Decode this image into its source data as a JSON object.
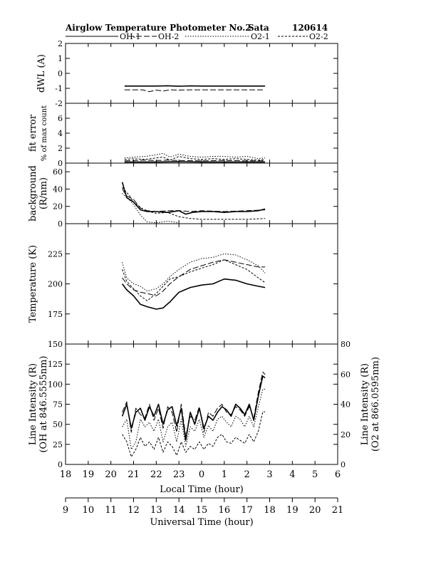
{
  "header": {
    "title": "Airglow Temperature Photometer No.2",
    "site": "Sata",
    "date": "120614"
  },
  "legend": [
    {
      "label": "OH-1",
      "color": "#000000",
      "dash": "solid",
      "width": 1.0
    },
    {
      "label": "OH-2",
      "color": "#000000",
      "dash": "longdash",
      "width": 1.0
    },
    {
      "label": "O2-1",
      "color": "#000000",
      "dash": "dot",
      "width": 1.0
    },
    {
      "label": "O2-2",
      "color": "#000000",
      "dash": "shortdash",
      "width": 1.0
    }
  ],
  "chart_data": [
    {
      "type": "line",
      "name": "dwl",
      "ylabel": "dWL (A)",
      "ylim": [
        -2,
        2
      ],
      "yticks": [
        2,
        1,
        0,
        -1,
        -2
      ],
      "xlim": [
        18,
        30
      ],
      "series": [
        {
          "name": "OH-1",
          "x": [
            20.6,
            21.5,
            22.0,
            22.5,
            23.0,
            23.5,
            24.0,
            25.0,
            26.0,
            26.8
          ],
          "y": [
            -0.85,
            -0.85,
            -0.85,
            -0.83,
            -0.86,
            -0.84,
            -0.85,
            -0.85,
            -0.85,
            -0.85
          ]
        },
        {
          "name": "OH-2",
          "x": [
            20.6,
            21.4,
            21.7,
            22.0,
            22.3,
            22.6,
            23.0,
            23.5,
            24.0,
            25.0,
            26.8
          ],
          "y": [
            -1.1,
            -1.1,
            -1.22,
            -1.12,
            -1.18,
            -1.1,
            -1.12,
            -1.1,
            -1.1,
            -1.1,
            -1.1
          ]
        }
      ]
    },
    {
      "type": "line",
      "name": "fit-error",
      "ylabel": "fit error",
      "ylabel2": "% of max count",
      "ylim": [
        0,
        8
      ],
      "yticks": [
        6,
        4,
        2,
        0
      ],
      "xlim": [
        18,
        30
      ],
      "series": [
        {
          "name": "OH-1",
          "x": [
            20.6,
            22.0,
            23.0,
            24.0,
            25.0,
            26.8
          ],
          "y": [
            0.15,
            0.15,
            0.18,
            0.15,
            0.15,
            0.15
          ]
        },
        {
          "name": "OH-2",
          "x": [
            20.6,
            21.5,
            22.0,
            22.5,
            23.0,
            24.0,
            25.0,
            26.0,
            26.8
          ],
          "y": [
            0.3,
            0.4,
            0.35,
            0.4,
            0.35,
            0.3,
            0.35,
            0.3,
            0.3
          ]
        },
        {
          "name": "O2-1",
          "x": [
            20.6,
            21.0,
            21.5,
            22.0,
            22.3,
            22.6,
            23.0,
            23.5,
            24.0,
            24.5,
            25.0,
            25.5,
            26.0,
            26.5,
            26.8
          ],
          "y": [
            0.7,
            0.8,
            0.9,
            1.1,
            1.3,
            0.8,
            1.2,
            0.9,
            0.8,
            0.9,
            0.9,
            0.8,
            0.9,
            0.6,
            0.7
          ]
        },
        {
          "name": "O2-2",
          "x": [
            20.6,
            21.0,
            21.5,
            22.0,
            22.3,
            22.6,
            23.0,
            23.5,
            24.0,
            24.5,
            25.0,
            25.5,
            26.0,
            26.5,
            26.8
          ],
          "y": [
            0.5,
            0.6,
            0.5,
            0.7,
            0.8,
            0.4,
            0.9,
            0.6,
            0.5,
            0.6,
            0.5,
            0.6,
            0.5,
            0.4,
            0.5
          ]
        }
      ]
    },
    {
      "type": "line",
      "name": "background",
      "ylabel": "background",
      "ylabel2": "(R/nm)",
      "ylim": [
        0,
        70
      ],
      "yticks": [
        60,
        40,
        20,
        0
      ],
      "xlim": [
        18,
        30
      ],
      "series": [
        {
          "name": "OH-1",
          "x": [
            20.5,
            20.7,
            21.0,
            21.3,
            21.6,
            22.0,
            22.5,
            23.0,
            23.3,
            23.6,
            24.0,
            24.5,
            25.0,
            25.5,
            26.0,
            26.5,
            26.8
          ],
          "y": [
            48,
            30,
            25,
            16,
            14,
            14,
            13,
            15,
            11,
            13,
            14,
            14,
            13,
            14,
            14,
            15,
            17
          ]
        },
        {
          "name": "OH-2",
          "x": [
            20.5,
            20.7,
            21.0,
            21.3,
            21.6,
            22.0,
            22.5,
            23.0,
            23.5,
            24.0,
            25.0,
            26.0,
            26.8
          ],
          "y": [
            40,
            32,
            28,
            18,
            15,
            14,
            15,
            15,
            14,
            15,
            14,
            15,
            16
          ]
        },
        {
          "name": "O2-1",
          "x": [
            20.5,
            20.8,
            21.0,
            21.3,
            21.6,
            22.0,
            22.5,
            23.0
          ],
          "y": [
            35,
            28,
            22,
            10,
            2,
            1,
            3,
            1
          ]
        },
        {
          "name": "O2-2",
          "x": [
            20.5,
            20.8,
            21.0,
            21.5,
            22.0,
            22.5,
            23.0,
            23.5,
            24.0,
            25.0,
            26.0,
            26.8
          ],
          "y": [
            42,
            33,
            25,
            15,
            12,
            13,
            8,
            6,
            5,
            5,
            5,
            6
          ]
        }
      ]
    },
    {
      "type": "line",
      "name": "temperature",
      "ylabel": "Temperature (K)",
      "ylim": [
        150,
        250
      ],
      "yticks": [
        225,
        200,
        175
      ],
      "xlim": [
        18,
        30
      ],
      "series": [
        {
          "name": "OH-1",
          "x": [
            20.5,
            20.7,
            21.0,
            21.3,
            21.6,
            22.0,
            22.3,
            22.6,
            23.0,
            23.5,
            24.0,
            24.5,
            25.0,
            25.5,
            26.0,
            26.5,
            26.8
          ],
          "y": [
            200,
            195,
            190,
            183,
            181,
            179,
            180,
            185,
            193,
            197,
            199,
            200,
            204,
            203,
            200,
            198,
            197
          ]
        },
        {
          "name": "OH-2",
          "x": [
            20.5,
            20.7,
            21.0,
            21.3,
            21.6,
            22.0,
            22.3,
            22.6,
            23.0,
            23.5,
            24.0,
            24.5,
            25.0,
            25.5,
            26.0,
            26.5,
            26.8
          ],
          "y": [
            205,
            200,
            195,
            193,
            192,
            190,
            194,
            200,
            206,
            212,
            215,
            218,
            220,
            218,
            216,
            214,
            214
          ]
        },
        {
          "name": "O2-1",
          "x": [
            20.5,
            20.7,
            21.0,
            21.3,
            21.6,
            22.0,
            22.3,
            22.6,
            23.0,
            23.5,
            24.0,
            24.5,
            25.0,
            25.5,
            26.0,
            26.5,
            26.8
          ],
          "y": [
            218,
            205,
            200,
            198,
            194,
            196,
            200,
            206,
            212,
            218,
            221,
            222,
            225,
            224,
            220,
            215,
            209
          ]
        },
        {
          "name": "O2-2",
          "x": [
            20.5,
            20.7,
            21.0,
            21.3,
            21.6,
            22.0,
            22.3,
            22.6,
            23.0,
            23.5,
            24.0,
            24.5,
            25.0,
            25.5,
            26.0,
            26.5,
            26.8
          ],
          "y": [
            212,
            202,
            196,
            190,
            186,
            192,
            198,
            204,
            206,
            210,
            213,
            216,
            220,
            216,
            212,
            205,
            201
          ]
        }
      ]
    },
    {
      "type": "line",
      "name": "line-intensity",
      "ylabel": "Line Intensity (R)",
      "ylabel2": "(OH at 846.5555nm)",
      "yrlabel": "Line Intensity (R)",
      "yrlabel2": "(O2 at 866.0595nm)",
      "ylim": [
        0,
        150
      ],
      "yticks": [
        150,
        125,
        100,
        75,
        50,
        25,
        0
      ],
      "yrlim": [
        0,
        80
      ],
      "yrticks": [
        80,
        60,
        40,
        20,
        0
      ],
      "xlim": [
        18,
        30
      ],
      "series": [
        {
          "name": "OH-1",
          "x": [
            20.5,
            20.7,
            20.9,
            21.1,
            21.3,
            21.5,
            21.7,
            21.9,
            22.1,
            22.3,
            22.5,
            22.7,
            22.9,
            23.1,
            23.3,
            23.5,
            23.7,
            23.9,
            24.1,
            24.3,
            24.5,
            24.7,
            24.9,
            25.1,
            25.3,
            25.5,
            25.7,
            25.9,
            26.1,
            26.3,
            26.5,
            26.7,
            26.8
          ],
          "y": [
            60,
            75,
            45,
            65,
            70,
            55,
            72,
            60,
            75,
            50,
            68,
            72,
            48,
            70,
            30,
            65,
            50,
            70,
            45,
            60,
            55,
            65,
            72,
            68,
            60,
            75,
            70,
            62,
            75,
            55,
            85,
            110,
            108
          ]
        },
        {
          "name": "OH-2",
          "x": [
            20.5,
            20.7,
            20.9,
            21.1,
            21.3,
            21.5,
            21.7,
            21.9,
            22.1,
            22.3,
            22.5,
            22.7,
            22.9,
            23.1,
            23.3,
            23.5,
            23.7,
            23.9,
            24.1,
            24.3,
            24.5,
            24.7,
            24.9,
            25.1,
            25.3,
            25.5,
            25.7,
            25.9,
            26.1,
            26.3,
            26.5,
            26.7,
            26.8
          ],
          "y": [
            65,
            78,
            40,
            70,
            62,
            58,
            75,
            55,
            70,
            45,
            72,
            65,
            40,
            75,
            35,
            60,
            55,
            72,
            40,
            65,
            60,
            70,
            75,
            65,
            62,
            72,
            68,
            60,
            72,
            58,
            90,
            115,
            112
          ]
        },
        {
          "name": "O2-1",
          "x": [
            20.5,
            20.7,
            20.9,
            21.1,
            21.3,
            21.5,
            21.7,
            21.9,
            22.1,
            22.3,
            22.5,
            22.7,
            22.9,
            23.1,
            23.3,
            23.5,
            23.7,
            23.9,
            24.1,
            24.3,
            24.5,
            24.7,
            24.9,
            25.1,
            25.3,
            25.5,
            25.7,
            25.9,
            26.1,
            26.3,
            26.5,
            26.7,
            26.8
          ],
          "y": [
            25,
            30,
            10,
            15,
            30,
            25,
            28,
            22,
            30,
            15,
            25,
            28,
            15,
            30,
            12,
            25,
            22,
            30,
            18,
            26,
            22,
            30,
            32,
            28,
            25,
            32,
            30,
            25,
            32,
            25,
            38,
            50,
            50
          ]
        },
        {
          "name": "O2-2",
          "x": [
            20.5,
            20.7,
            20.9,
            21.1,
            21.3,
            21.5,
            21.7,
            21.9,
            22.1,
            22.3,
            22.5,
            22.7,
            22.9,
            23.1,
            23.3,
            23.5,
            23.7,
            23.9,
            24.1,
            24.3,
            24.5,
            24.7,
            24.9,
            25.1,
            25.3,
            25.5,
            25.7,
            25.9,
            26.1,
            26.3,
            26.5,
            26.7,
            26.8
          ],
          "y": [
            20,
            15,
            5,
            10,
            18,
            12,
            15,
            10,
            18,
            8,
            15,
            12,
            6,
            15,
            8,
            12,
            10,
            15,
            10,
            14,
            12,
            18,
            20,
            15,
            14,
            18,
            16,
            14,
            20,
            15,
            22,
            35,
            35
          ]
        }
      ]
    }
  ],
  "x_axes": {
    "local": {
      "label": "Local Time (hour)",
      "ticks": [
        "18",
        "19",
        "20",
        "21",
        "22",
        "23",
        "0",
        "1",
        "2",
        "3",
        "4",
        "5",
        "6"
      ]
    },
    "universal": {
      "label": "Universal Time (hour)",
      "ticks": [
        "9",
        "10",
        "11",
        "12",
        "13",
        "14",
        "15",
        "16",
        "17",
        "18",
        "19",
        "20",
        "21"
      ]
    }
  }
}
